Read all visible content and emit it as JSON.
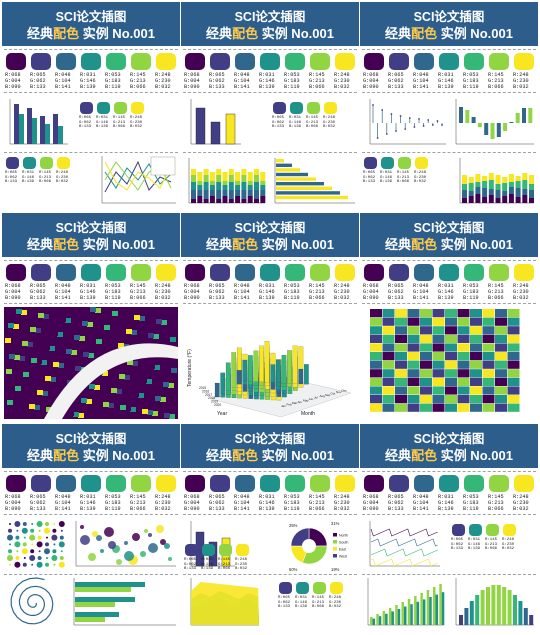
{
  "header": {
    "title_line1": "SCI论文插图",
    "title_prefix": "经典",
    "title_highlight": "配色",
    "title_suffix": "实例 No.001"
  },
  "palette": [
    {
      "hex": "#440154",
      "r": "R:068",
      "g": "G:004",
      "b": "B:090"
    },
    {
      "hex": "#413e85",
      "r": "R:065",
      "g": "G:062",
      "b": "B:133"
    },
    {
      "hex": "#30688d",
      "r": "R:048",
      "g": "G:104",
      "b": "B:141"
    },
    {
      "hex": "#1f928b",
      "r": "R:031",
      "g": "G:146",
      "b": "B:139"
    },
    {
      "hex": "#35b777",
      "r": "R:053",
      "g": "G:183",
      "b": "B:119"
    },
    {
      "hex": "#91d542",
      "r": "R:145",
      "g": "G:213",
      "b": "B:066"
    },
    {
      "hex": "#f8e620",
      "r": "R:248",
      "g": "G:230",
      "b": "B:032"
    }
  ],
  "small_palette": [
    {
      "hex": "#413e85",
      "r": "R:065",
      "g": "G:062",
      "b": "B:133"
    },
    {
      "hex": "#1f928b",
      "r": "R:031",
      "g": "G:146",
      "b": "B:139"
    },
    {
      "hex": "#91d542",
      "r": "R:145",
      "g": "G:213",
      "b": "B:066"
    },
    {
      "hex": "#f8e620",
      "r": "R:248",
      "g": "G:230",
      "b": "B:032"
    }
  ],
  "panels": [
    {
      "id": "p1",
      "kind": "bars-lines"
    },
    {
      "id": "p2",
      "kind": "stacked-hbar"
    },
    {
      "id": "p3",
      "kind": "stem-bars"
    },
    {
      "id": "p4",
      "kind": "image"
    },
    {
      "id": "p5",
      "kind": "3d-bars",
      "zlabel": "Temperature (°F)",
      "xlabel": "Year",
      "ylabel": "Month",
      "years": [
        "2015",
        "2016",
        "2017",
        "2018",
        "2019",
        "2020"
      ],
      "months": [
        "Jan",
        "Feb",
        "Mar",
        "Apr",
        "May",
        "Jun",
        "Jul",
        "Aug",
        "Sep",
        "Oct",
        "Nov",
        "Dec"
      ]
    },
    {
      "id": "p6",
      "kind": "heatmap"
    },
    {
      "id": "p7",
      "kind": "dots-spiral"
    },
    {
      "id": "p8",
      "kind": "pie-area",
      "pie_labels": [
        "25%",
        "31%",
        "19%",
        "50%"
      ],
      "legend": [
        "North",
        "South",
        "East",
        "West"
      ]
    },
    {
      "id": "p9",
      "kind": "lines-bars"
    }
  ]
}
